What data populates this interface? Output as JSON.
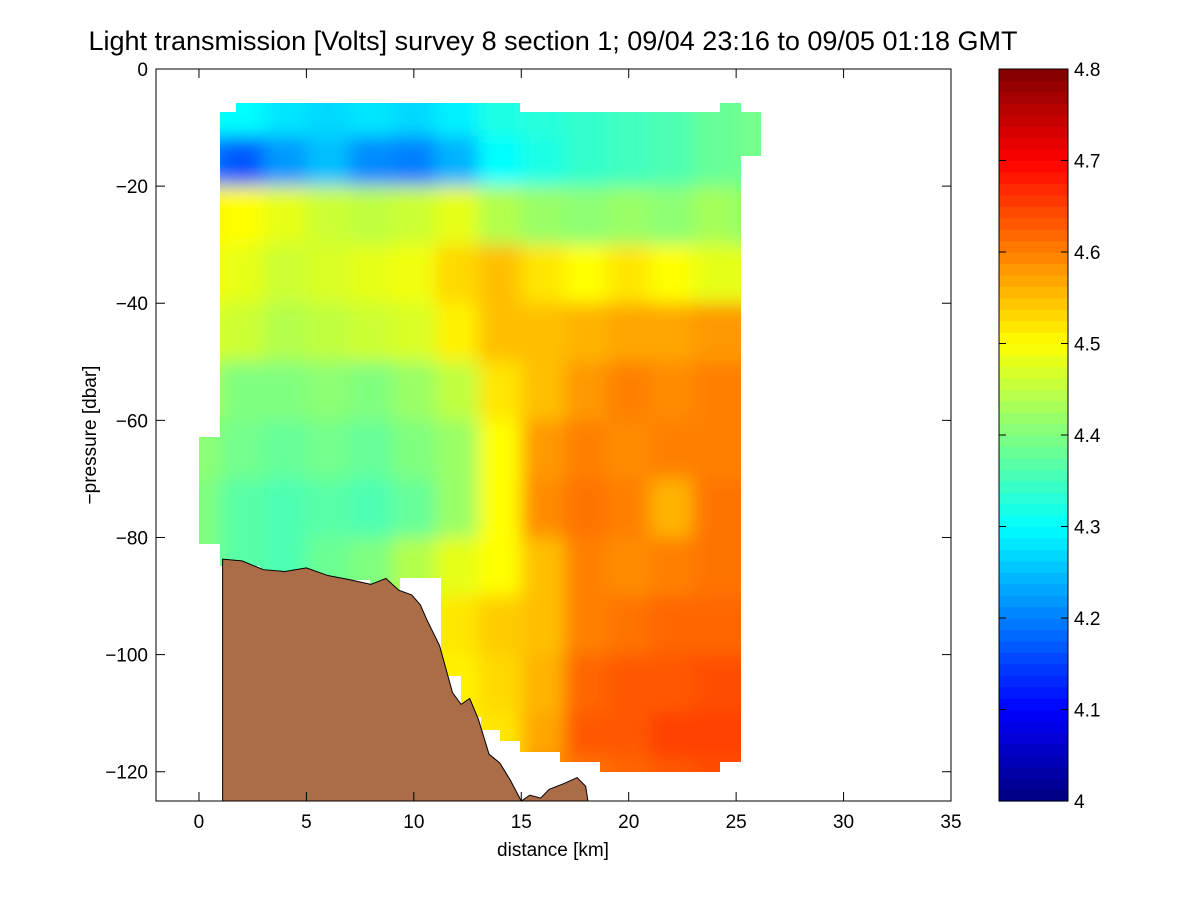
{
  "chart_data": {
    "type": "heatmap",
    "title": "Light transmission [Volts] survey 8 section 1; 09/04 23:16 to 09/05 01:18 GMT",
    "xlabel": "distance [km]",
    "ylabel": "−pressure [dbar]",
    "xlim": [
      -2,
      35
    ],
    "ylim": [
      -125,
      0
    ],
    "x_ticks": [
      0,
      5,
      10,
      15,
      20,
      25,
      30,
      35
    ],
    "x_tick_labels": [
      "0",
      "5",
      "10",
      "15",
      "20",
      "25",
      "30",
      "35"
    ],
    "y_ticks": [
      0,
      -20,
      -40,
      -60,
      -80,
      -100,
      -120
    ],
    "y_tick_labels": [
      "0",
      "−20",
      "−40",
      "−60",
      "−80",
      "−100",
      "−120"
    ],
    "colorbar": {
      "clim": [
        4.0,
        4.8
      ],
      "ticks": [
        4.0,
        4.1,
        4.2,
        4.3,
        4.4,
        4.5,
        4.6,
        4.7,
        4.8
      ],
      "tick_labels": [
        "4",
        "4.1",
        "4.2",
        "4.3",
        "4.4",
        "4.5",
        "4.6",
        "4.7",
        "4.8"
      ],
      "colormap": "jet"
    },
    "field_x": [
      0,
      2,
      4,
      6,
      8,
      10,
      12,
      14,
      16,
      18,
      20,
      22,
      24,
      26
    ],
    "field_depth": [
      -8,
      -15,
      -25,
      -35,
      -45,
      -55,
      -65,
      -75,
      -85,
      -95,
      -105,
      -115,
      -120
    ],
    "field_values": [
      [
        4.31,
        4.3,
        4.28,
        4.27,
        4.28,
        4.27,
        4.29,
        4.32,
        4.33,
        4.34,
        4.35,
        4.36,
        4.38,
        4.39
      ],
      [
        4.2,
        4.17,
        4.22,
        4.25,
        4.21,
        4.2,
        4.24,
        4.3,
        4.32,
        4.34,
        4.35,
        4.36,
        4.38,
        4.39
      ],
      [
        4.51,
        4.5,
        4.48,
        4.46,
        4.45,
        4.46,
        4.48,
        4.44,
        4.42,
        4.41,
        4.42,
        4.41,
        4.43,
        null
      ],
      [
        4.5,
        4.48,
        4.46,
        4.47,
        4.48,
        4.49,
        4.53,
        4.55,
        4.52,
        4.5,
        4.52,
        4.5,
        4.48,
        null
      ],
      [
        4.47,
        4.46,
        4.44,
        4.45,
        4.46,
        4.47,
        4.51,
        4.55,
        4.55,
        4.56,
        4.57,
        4.57,
        4.58,
        null
      ],
      [
        4.43,
        4.4,
        4.4,
        4.41,
        4.4,
        4.42,
        4.45,
        4.52,
        4.55,
        4.58,
        4.6,
        4.59,
        4.6,
        null
      ],
      [
        4.41,
        4.39,
        4.38,
        4.39,
        4.38,
        4.4,
        4.42,
        4.5,
        4.58,
        4.6,
        4.59,
        4.6,
        4.6,
        null
      ],
      [
        4.4,
        4.37,
        4.36,
        4.37,
        4.36,
        4.38,
        4.42,
        4.5,
        4.59,
        4.61,
        4.6,
        4.56,
        4.61,
        null
      ],
      [
        null,
        null,
        null,
        null,
        4.4,
        4.44,
        4.48,
        4.5,
        4.55,
        4.6,
        4.59,
        4.6,
        4.61,
        null
      ],
      [
        null,
        null,
        null,
        null,
        null,
        null,
        4.52,
        4.54,
        4.55,
        4.6,
        4.61,
        4.62,
        4.62,
        null
      ],
      [
        null,
        null,
        null,
        null,
        null,
        null,
        4.51,
        4.53,
        4.56,
        4.62,
        4.63,
        4.63,
        4.64,
        null
      ],
      [
        null,
        null,
        null,
        null,
        null,
        null,
        null,
        4.52,
        4.57,
        4.63,
        4.63,
        4.65,
        4.65,
        null
      ],
      [
        null,
        null,
        null,
        null,
        null,
        null,
        null,
        null,
        null,
        4.61,
        4.62,
        4.63,
        4.64,
        null
      ]
    ],
    "bottom_color": "#ab6c48",
    "bottom_profile": {
      "x": [
        1.1,
        2.0,
        3.0,
        4.0,
        5.0,
        6.0,
        7.0,
        8.0,
        8.7,
        9.3,
        9.9,
        10.3,
        10.6,
        11.2,
        11.8,
        12.2,
        12.6,
        13.0,
        13.5,
        14.0,
        14.5,
        15.0,
        15.4,
        15.9,
        16.3,
        17.0,
        17.6,
        18.0,
        18.1
      ],
      "y": [
        -83.7,
        -84.0,
        -85.5,
        -85.8,
        -85.2,
        -86.5,
        -87.2,
        -88.0,
        -87.0,
        -89.0,
        -89.8,
        -91.5,
        -94.0,
        -98.5,
        -106.5,
        -108.5,
        -107.5,
        -111.0,
        -117.0,
        -118.5,
        -121.5,
        -125.0,
        -124.0,
        -124.5,
        -123.0,
        -122.0,
        -121.0,
        -122.5,
        -125.0
      ]
    }
  }
}
